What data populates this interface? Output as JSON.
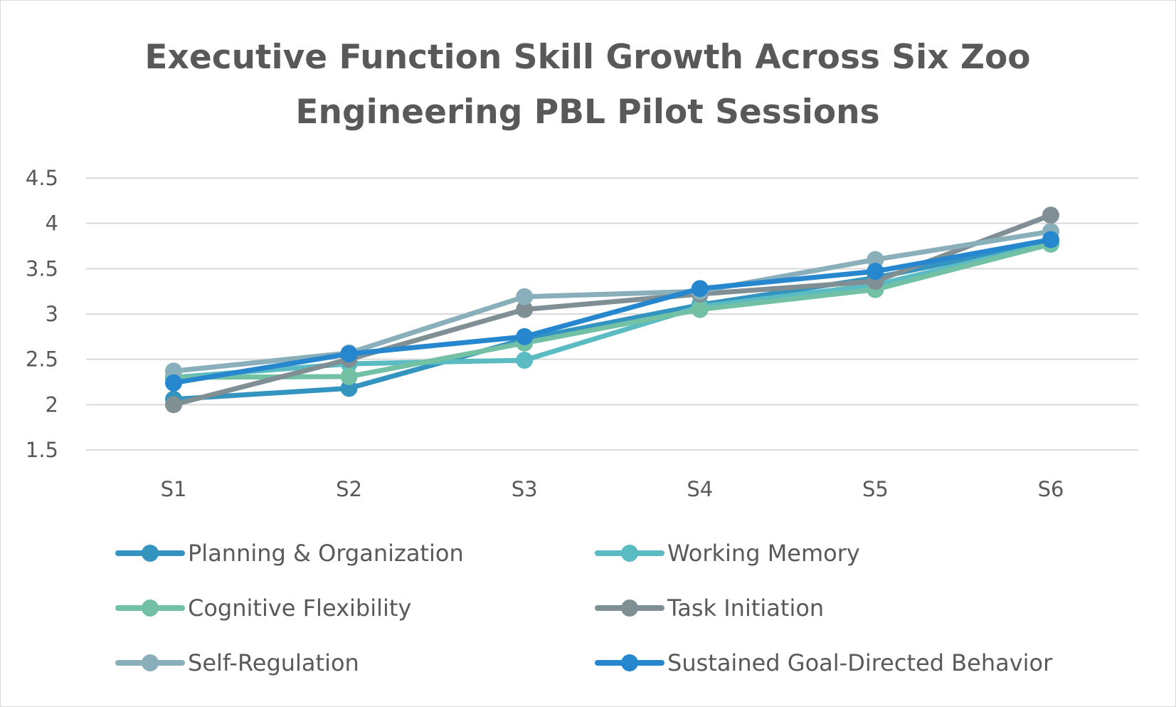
{
  "chart_data": {
    "type": "line",
    "title": "Executive Function Skill Growth Across Six Zoo Engineering PBL Pilot Sessions",
    "title_lines": [
      "Executive Function Skill Growth Across Six Zoo",
      "Engineering PBL Pilot Sessions"
    ],
    "categories": [
      "S1",
      "S2",
      "S3",
      "S4",
      "S5",
      "S6"
    ],
    "ylim": [
      1.5,
      4.5
    ],
    "yticks": [
      "1.5",
      "2",
      "2.5",
      "3",
      "3.5",
      "4",
      "4.5"
    ],
    "grid": true,
    "legend_placement": "bottom",
    "series": [
      {
        "name": "Planning & Organization",
        "color": "#3494C0",
        "values": [
          2.06,
          2.18,
          2.72,
          3.1,
          3.4,
          3.8
        ]
      },
      {
        "name": "Working Memory",
        "color": "#5BBBC2",
        "values": [
          2.3,
          2.45,
          2.49,
          3.08,
          3.32,
          3.78
        ]
      },
      {
        "name": "Cognitive Flexibility",
        "color": "#72C1A5",
        "values": [
          2.3,
          2.31,
          2.68,
          3.05,
          3.27,
          3.77
        ]
      },
      {
        "name": "Task Initiation",
        "color": "#7F8F93",
        "values": [
          2.0,
          2.5,
          3.05,
          3.22,
          3.36,
          4.09
        ]
      },
      {
        "name": "Self-Regulation",
        "color": "#89AFBA",
        "values": [
          2.37,
          2.57,
          3.19,
          3.25,
          3.6,
          3.91
        ]
      },
      {
        "name": "Sustained Goal-Directed Behavior",
        "color": "#2787CE",
        "values": [
          2.24,
          2.56,
          2.75,
          3.28,
          3.47,
          3.82
        ]
      }
    ]
  }
}
